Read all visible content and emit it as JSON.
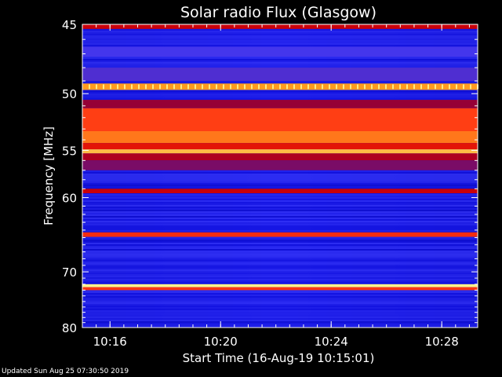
{
  "chart_data": {
    "type": "heatmap",
    "title": "Solar radio Flux (Glasgow)",
    "xlabel": "Start Time (16-Aug-19 10:15:01)",
    "ylabel": "Frequency [MHz]",
    "x_ticks": [
      "10:16",
      "10:20",
      "10:24",
      "10:28"
    ],
    "x_tick_minutes": [
      1,
      5,
      9,
      13
    ],
    "x_range_minutes": [
      0,
      14.3
    ],
    "y_ticks": [
      45,
      50,
      55,
      60,
      70,
      80
    ],
    "ylim": [
      80,
      45
    ],
    "y_scale": "reciprocal",
    "colormap": [
      "#00007a",
      "#1515e6",
      "#3c3cff",
      "#8a0040",
      "#d40000",
      "#ff3a14",
      "#ffa020",
      "#ffff9a"
    ],
    "bands": [
      {
        "freq_mhz": [
          45.0,
          45.3
        ],
        "level": 0.55
      },
      {
        "freq_mhz": [
          46.5,
          47.2
        ],
        "level": 0.3
      },
      {
        "freq_mhz": [
          48.0,
          49.0
        ],
        "level": 0.32
      },
      {
        "freq_mhz": [
          49.2,
          49.7
        ],
        "level": 0.85
      },
      {
        "freq_mhz": [
          50.5,
          51.2
        ],
        "level": 0.45
      },
      {
        "freq_mhz": [
          51.2,
          53.2
        ],
        "level": 0.72
      },
      {
        "freq_mhz": [
          53.2,
          54.3
        ],
        "level": 0.8
      },
      {
        "freq_mhz": [
          54.3,
          54.9
        ],
        "level": 0.62
      },
      {
        "freq_mhz": [
          54.9,
          55.3
        ],
        "level": 0.9
      },
      {
        "freq_mhz": [
          55.3,
          56.0
        ],
        "level": 0.5
      },
      {
        "freq_mhz": [
          56.0,
          57.0
        ],
        "level": 0.4
      },
      {
        "freq_mhz": [
          59.0,
          59.5
        ],
        "level": 0.55
      },
      {
        "freq_mhz": [
          64.3,
          64.9
        ],
        "level": 0.68
      },
      {
        "freq_mhz": [
          72.0,
          72.5
        ],
        "level": 0.98
      },
      {
        "freq_mhz": [
          72.5,
          73.0
        ],
        "level": 0.7
      }
    ]
  },
  "footer": {
    "updated": "Updated Sun Aug 25 07:30:50 2019"
  }
}
